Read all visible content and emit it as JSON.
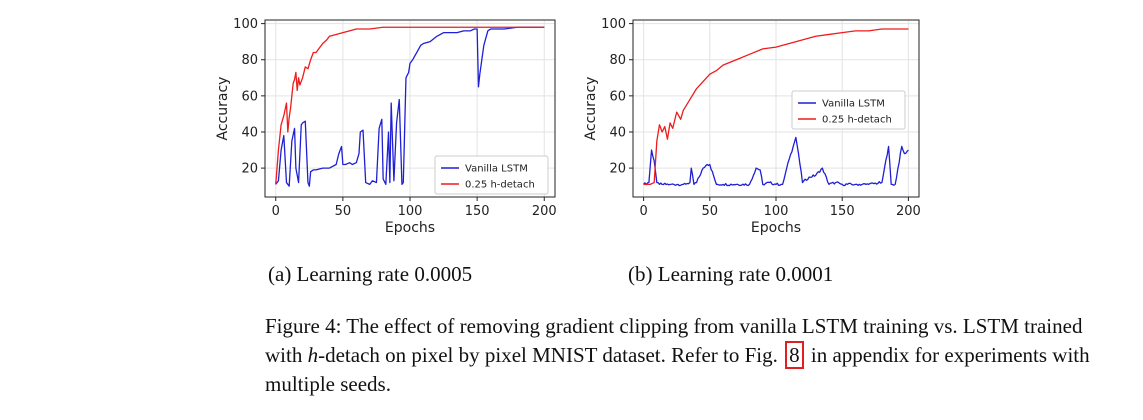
{
  "chart_data": [
    {
      "type": "line",
      "xlabel": "Epochs",
      "ylabel": "Accuracy",
      "xlim": [
        -8,
        208
      ],
      "ylim": [
        4,
        102
      ],
      "xticks": [
        0,
        50,
        100,
        150,
        200
      ],
      "yticks": [
        20,
        40,
        60,
        80,
        100
      ],
      "xtick_labels": [
        "0",
        "50",
        "100",
        "150",
        "200"
      ],
      "ytick_labels": [
        "20",
        "40",
        "60",
        "80",
        "100"
      ],
      "grid": true,
      "legend_position": "bottom-right",
      "series": [
        {
          "name": "Vanilla LSTM",
          "color": "#1f1fd6",
          "x": [
            0,
            2,
            4,
            6,
            8,
            10,
            12,
            14,
            15,
            17,
            19,
            20,
            22,
            24,
            25,
            26,
            28,
            30,
            35,
            40,
            45,
            47,
            49,
            50,
            52,
            55,
            57,
            60,
            62,
            63,
            65,
            67,
            70,
            72,
            75,
            77,
            79,
            80,
            82,
            84,
            85,
            86,
            88,
            90,
            92,
            94,
            95,
            97,
            99,
            100,
            102,
            105,
            108,
            110,
            115,
            120,
            125,
            130,
            135,
            140,
            145,
            148,
            150,
            151,
            152,
            155,
            158,
            160,
            170,
            180,
            190,
            200
          ],
          "y": [
            11,
            13,
            30,
            38,
            12,
            10,
            35,
            42,
            20,
            12,
            44,
            45,
            46,
            12,
            10,
            18,
            19,
            19,
            20,
            20,
            22,
            28,
            32,
            22,
            22,
            23,
            22,
            23,
            28,
            40,
            41,
            12,
            11,
            13,
            12,
            42,
            47,
            14,
            11,
            40,
            12,
            56,
            13,
            45,
            58,
            11,
            12,
            70,
            73,
            78,
            80,
            84,
            88,
            89,
            90,
            93,
            95,
            95,
            95,
            96,
            96,
            97,
            97,
            65,
            72,
            88,
            96,
            97,
            97,
            98,
            98,
            98
          ]
        },
        {
          "name": "0.25 h-detach",
          "color": "#ee1c1c",
          "x": [
            0,
            2,
            4,
            6,
            8,
            9,
            10,
            11,
            12,
            13,
            14,
            15,
            16,
            17,
            18,
            20,
            22,
            24,
            26,
            28,
            30,
            32,
            35,
            38,
            40,
            45,
            50,
            55,
            60,
            70,
            80,
            90,
            100,
            110,
            120,
            130,
            140,
            150,
            160,
            180,
            200
          ],
          "y": [
            11,
            30,
            44,
            49,
            56,
            40,
            48,
            53,
            60,
            67,
            69,
            73,
            63,
            70,
            66,
            70,
            76,
            75,
            80,
            84,
            84,
            86,
            89,
            91,
            93,
            94,
            95,
            96,
            97,
            97,
            98,
            98,
            98,
            98,
            98,
            98,
            98,
            98,
            98,
            98,
            98
          ]
        }
      ]
    },
    {
      "type": "line",
      "xlabel": "Epochs",
      "ylabel": "Accuracy",
      "xlim": [
        -8,
        208
      ],
      "ylim": [
        4,
        102
      ],
      "xticks": [
        0,
        50,
        100,
        150,
        200
      ],
      "yticks": [
        20,
        40,
        60,
        80,
        100
      ],
      "xtick_labels": [
        "0",
        "50",
        "100",
        "150",
        "200"
      ],
      "ytick_labels": [
        "20",
        "40",
        "60",
        "80",
        "100"
      ],
      "grid": true,
      "legend_position": "center-right",
      "series": [
        {
          "name": "Vanilla LSTM",
          "color": "#1f1fd6",
          "x": [
            0,
            4,
            6,
            8,
            10,
            12,
            14,
            20,
            30,
            35,
            36,
            38,
            40,
            45,
            48,
            50,
            55,
            60,
            70,
            80,
            85,
            88,
            90,
            95,
            100,
            105,
            110,
            113,
            115,
            117,
            120,
            125,
            130,
            135,
            140,
            145,
            150,
            160,
            170,
            180,
            185,
            187,
            190,
            195,
            197,
            200
          ],
          "y": [
            11,
            12,
            30,
            24,
            12,
            11,
            11,
            11,
            11,
            12,
            20,
            11,
            12,
            20,
            22,
            22,
            11,
            11,
            11,
            11,
            20,
            19,
            11,
            12,
            11,
            11,
            25,
            32,
            37,
            28,
            12,
            15,
            16,
            20,
            11,
            12,
            11,
            11,
            11,
            12,
            32,
            11,
            11,
            32,
            28,
            30
          ],
          "_noise": true
        },
        {
          "name": "0.25 h-detach",
          "color": "#ee1c1c",
          "x": [
            0,
            5,
            8,
            10,
            12,
            14,
            16,
            18,
            20,
            22,
            25,
            28,
            30,
            35,
            40,
            45,
            50,
            55,
            60,
            70,
            80,
            90,
            100,
            110,
            120,
            130,
            140,
            150,
            160,
            170,
            180,
            190,
            200
          ],
          "y": [
            11,
            11,
            12,
            35,
            44,
            40,
            43,
            36,
            45,
            42,
            51,
            47,
            52,
            58,
            64,
            68,
            72,
            74,
            77,
            80,
            83,
            86,
            87,
            89,
            91,
            93,
            94,
            95,
            96,
            96,
            97,
            97,
            97
          ]
        }
      ]
    }
  ],
  "subcaptions": {
    "a": "(a) Learning rate 0.0005",
    "b": "(b) Learning rate 0.0001"
  },
  "caption": {
    "line1": "Figure 4: The effect of removing gradient clipping from vanilla LSTM training vs. LSTM trained",
    "line2_pre": "with ",
    "line2_h": "h",
    "line2_mid": "-detach on pixel by pixel MNIST dataset. Refer to Fig. ",
    "line2_ref": "8",
    "line2_post": " in appendix for experiments with",
    "line3": "multiple seeds."
  }
}
